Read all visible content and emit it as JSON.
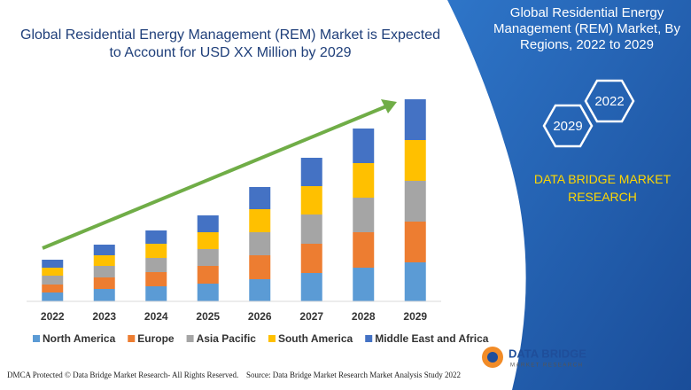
{
  "chart_data": {
    "type": "bar",
    "stacked": true,
    "title": "Global Residential Energy Management (REM) Market is Expected to Account for USD XX Million by 2029",
    "categories": [
      "2022",
      "2023",
      "2024",
      "2025",
      "2026",
      "2027",
      "2028",
      "2029"
    ],
    "series": [
      {
        "name": "North America",
        "color": "#5b9bd5",
        "values": [
          10,
          14,
          17,
          20,
          25,
          32,
          38,
          44
        ]
      },
      {
        "name": "Europe",
        "color": "#ed7d31",
        "values": [
          9,
          13,
          16,
          20,
          27,
          33,
          40,
          46
        ]
      },
      {
        "name": "Asia Pacific",
        "color": "#a5a5a5",
        "values": [
          10,
          13,
          16,
          19,
          26,
          33,
          39,
          46
        ]
      },
      {
        "name": "South America",
        "color": "#ffc000",
        "values": [
          9,
          12,
          16,
          19,
          26,
          32,
          39,
          46
        ]
      },
      {
        "name": "Middle East and Africa",
        "color": "#4472c4",
        "values": [
          9,
          12,
          15,
          19,
          25,
          32,
          39,
          46
        ]
      }
    ],
    "ylim": [
      0,
      250
    ],
    "grid": false,
    "legend": "bottom"
  },
  "panel": {
    "title": "Global Residential Energy Management (REM) Market, By Regions, 2022 to 2029",
    "hexagons": [
      "2022",
      "2029"
    ],
    "brand": "DATA BRIDGE MARKET RESEARCH"
  },
  "logo": {
    "name": "DATA BRIDGE",
    "tagline": "MARKET RESEARCH"
  },
  "footer": {
    "dmca": "DMCA Protected © Data Bridge Market Research- All Rights Reserved.",
    "source": "Source: Data Bridge Market Research Market Analysis Study 2022"
  }
}
